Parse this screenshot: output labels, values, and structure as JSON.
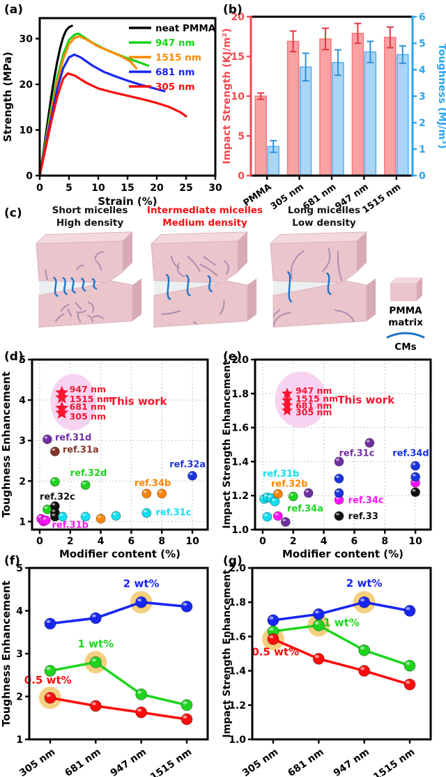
{
  "diagram": {
    "panel_label": "(c)",
    "blocks": [
      {
        "title1": "Short micelles",
        "title2": "High density",
        "title_color": "#111111",
        "micelles": {
          "count": 13,
          "len": 13,
          "bridges": 5,
          "bridge_len": 10
        }
      },
      {
        "title1": "Intermediate micelles",
        "title2": "Medium density",
        "title_color": "#f50f0f",
        "micelles": {
          "count": 9,
          "len": 22,
          "bridges": 3,
          "bridge_len": 18
        }
      },
      {
        "title1": "Long micelles",
        "title2": "Low density",
        "title_color": "#111111",
        "micelles": {
          "count": 6,
          "len": 36,
          "bridges": 2,
          "bridge_len": 26
        }
      }
    ],
    "legend": {
      "matrix_label1": "PMMA",
      "matrix_label2": "matrix",
      "cm_label": "CMs",
      "matrix_front": "#eac5cc",
      "matrix_top": "#f3d9dd",
      "matrix_side": "#d7aab5",
      "micelle_color": "#ab8fae",
      "cm_color": "#1b74c4"
    }
  },
  "chart_data": [
    {
      "id": "a",
      "type": "line",
      "panel_label": "(a)",
      "xlabel": "Strain (%)",
      "ylabel": "Strength (MPa)",
      "xlim": [
        0,
        30
      ],
      "ylim": [
        0,
        34.5
      ],
      "xticks": [
        "0",
        "5",
        "10",
        "15",
        "20",
        "25",
        "30"
      ],
      "yticks": [
        "0",
        "10",
        "20",
        "30"
      ],
      "legend_position": "top-right",
      "series": [
        {
          "name": "neat PMMA",
          "color": "#000000",
          "x": [
            0,
            0.5,
            1,
            1.5,
            2,
            2.5,
            3,
            3.5,
            4,
            4.5,
            5,
            5.5
          ],
          "y": [
            0,
            4,
            8.5,
            13,
            17.5,
            21.5,
            25,
            28,
            30.3,
            31.8,
            32.5,
            32.8
          ]
        },
        {
          "name": "947 nm",
          "color": "#14d414",
          "x": [
            0,
            1,
            2,
            3,
            4,
            5,
            6,
            6.6,
            7.5,
            9,
            11,
            13,
            15,
            17,
            18.5
          ],
          "y": [
            0,
            7.5,
            15,
            21.5,
            26.5,
            29.7,
            30.9,
            31.1,
            30.4,
            29.1,
            27.8,
            26.7,
            25.7,
            24.8,
            24.1
          ]
        },
        {
          "name": "1515 nm",
          "color": "#ff8a00",
          "x": [
            0,
            1,
            2,
            3,
            4,
            5,
            6,
            6.8,
            8,
            10,
            12,
            14,
            15.5,
            16.5
          ],
          "y": [
            0,
            7,
            14,
            20.5,
            25.5,
            28.8,
            30.2,
            30.5,
            29.8,
            28.3,
            27.2,
            26.1,
            25,
            23.5
          ]
        },
        {
          "name": "681 nm",
          "color": "#1726f2",
          "x": [
            0,
            1,
            2,
            3,
            4,
            5,
            5.9,
            7,
            9,
            11,
            13,
            15,
            17,
            19,
            21.3
          ],
          "y": [
            0,
            6.5,
            13,
            19,
            23.5,
            25.9,
            26.5,
            25.9,
            24.1,
            22.7,
            21.7,
            20.8,
            20,
            19.3,
            18.5
          ]
        },
        {
          "name": "305 nm",
          "color": "#fb0d0d",
          "x": [
            0,
            1,
            2,
            3,
            4,
            4.8,
            6,
            8,
            10,
            12,
            14,
            16,
            18,
            20,
            22,
            24,
            25
          ],
          "y": [
            0,
            6,
            12,
            17.3,
            21.2,
            22.4,
            21.9,
            20.3,
            19.1,
            18.4,
            17.8,
            17.2,
            16.6,
            15.9,
            15.1,
            13.9,
            13
          ]
        }
      ]
    },
    {
      "id": "b",
      "type": "bar",
      "panel_label": "(b)",
      "categories": [
        "PMMA",
        "305 nm",
        "681 nm",
        "947 nm",
        "1515 nm"
      ],
      "left": {
        "label": "Impact Strength (KJ/m²)",
        "lim": [
          0,
          20
        ],
        "ticks": [
          "0",
          "5",
          "10",
          "15",
          "20"
        ],
        "color": "#f5474e"
      },
      "right": {
        "label": "Toughness (MJ/m³)",
        "lim": [
          0,
          6
        ],
        "ticks": [
          "0",
          "1",
          "2",
          "3",
          "4",
          "5",
          "6"
        ],
        "color": "#2ba4ef"
      },
      "series": [
        {
          "name": "Impact Strength",
          "axis": "left",
          "fill": "#f9a2a4",
          "edge": "#f87478",
          "err_color": "#e8353f",
          "values": [
            10.0,
            16.9,
            17.2,
            17.9,
            17.4
          ],
          "errors": [
            0.4,
            1.3,
            1.35,
            1.25,
            1.3
          ]
        },
        {
          "name": "Toughness",
          "axis": "right",
          "fill": "#a9d6f5",
          "edge": "#53aeee",
          "err_color": "#2f8fd9",
          "values": [
            1.1,
            4.1,
            4.27,
            4.67,
            4.57
          ],
          "errors": [
            0.22,
            0.52,
            0.48,
            0.4,
            0.33
          ]
        }
      ]
    },
    {
      "id": "d",
      "type": "scatter",
      "panel_label": "(d)",
      "xlabel": "Modifier content (%)",
      "ylabel": "Toughness Enhancement",
      "xlim": [
        -0.5,
        11
      ],
      "ylim": [
        0.8,
        5
      ],
      "xticks": [
        "0",
        "2",
        "4",
        "6",
        "8",
        "10"
      ],
      "yticks": [
        "1",
        "2",
        "3",
        "4",
        "5"
      ],
      "grid": true,
      "groups": [
        {
          "name": "ref.31d",
          "color": "#7030a0",
          "points": [
            [
              0.5,
              3.03
            ]
          ],
          "label_at": [
            1.0,
            3.08
          ]
        },
        {
          "name": "ref.31a",
          "color": "#83352a",
          "points": [
            [
              1,
              2.73
            ]
          ],
          "label_at": [
            1.5,
            2.78
          ]
        },
        {
          "name": "ref.32d",
          "color": "#1fd41f",
          "points": [
            [
              0.5,
              1.3
            ],
            [
              1,
              1.98
            ],
            [
              3,
              1.9
            ]
          ],
          "label_at": [
            2.0,
            2.2
          ]
        },
        {
          "name": "ref.32c",
          "color": "#111111",
          "points": [
            [
              1,
              1.38
            ],
            [
              1,
              1.22
            ],
            [
              1,
              1.12
            ]
          ],
          "label_at": [
            0.0,
            1.62
          ]
        },
        {
          "name": "ref.31b",
          "color": "#fb14fb",
          "points": [
            [
              0.1,
              1.07
            ],
            [
              0.25,
              1.0
            ],
            [
              0.4,
              1.03
            ]
          ],
          "label_at": [
            0.8,
            0.92
          ]
        },
        {
          "name": "ref.34b",
          "color": "#ff8500",
          "points": [
            [
              4,
              1.07
            ],
            [
              7,
              1.69
            ],
            [
              8,
              1.69
            ]
          ],
          "label_at": [
            6.2,
            1.95
          ]
        },
        {
          "name": "ref.31c",
          "color": "#12dff0",
          "points": [
            [
              1.5,
              1.12
            ],
            [
              3,
              1.12
            ],
            [
              5,
              1.14
            ],
            [
              7,
              1.21
            ]
          ],
          "label_at": [
            7.6,
            1.23
          ]
        },
        {
          "name": "ref.32a",
          "color": "#1a35dd",
          "points": [
            [
              10,
              2.13
            ]
          ],
          "label_at": [
            8.5,
            2.42
          ]
        }
      ],
      "highlight": {
        "color": "#fb1430",
        "ellipse": {
          "cx": 2.2,
          "cy": 3.95,
          "rx": 1.5,
          "ry": 0.7,
          "fill": "#f8d3f1"
        },
        "stars": [
          {
            "x": 1.45,
            "y": 4.18
          },
          {
            "x": 1.45,
            "y": 4.06
          },
          {
            "x": 1.45,
            "y": 3.8
          },
          {
            "x": 1.45,
            "y": 3.68
          }
        ],
        "star_labels": [
          {
            "text": "947 nm",
            "x": 1.95,
            "y": 4.26
          },
          {
            "text": "1515 nm",
            "x": 1.95,
            "y": 4.02
          },
          {
            "text": "681 nm",
            "x": 1.95,
            "y": 3.83
          },
          {
            "text": "305 nm",
            "x": 1.95,
            "y": 3.59
          }
        ],
        "title": {
          "text": "This work",
          "x": 4.6,
          "y": 3.97
        }
      }
    },
    {
      "id": "e",
      "type": "scatter",
      "panel_label": "(e)",
      "xlabel": "Modifier content (%)",
      "ylabel": "Impact Strength Enhancement",
      "xlim": [
        -0.5,
        11
      ],
      "ylim": [
        1.0,
        2.0
      ],
      "xticks": [
        "0",
        "2",
        "4",
        "6",
        "8",
        "10"
      ],
      "yticks": [
        "1.0",
        "1.2",
        "1.4",
        "1.6",
        "1.8",
        "2.0"
      ],
      "grid": true,
      "groups": [
        {
          "name": "ref.31b",
          "color": "#12dff0",
          "points": [
            [
              0.1,
              1.18
            ],
            [
              0.3,
              1.19
            ],
            [
              0.55,
              1.185
            ],
            [
              0.8,
              1.165
            ],
            [
              0.3,
              1.075
            ]
          ],
          "label_at": [
            0.0,
            1.33
          ]
        },
        {
          "name": "ref.32b",
          "color": "#ff8500",
          "points": [
            [
              1.0,
              1.21
            ]
          ],
          "label_at": [
            0.55,
            1.27
          ]
        },
        {
          "name": "ref.34a",
          "color": "#1fd41f",
          "points": [
            [
              2,
              1.195
            ]
          ],
          "label_at": [
            1.6,
            1.125
          ]
        },
        {
          "name": "ref.31c",
          "color": "#7030a0",
          "points": [
            [
              1.5,
              1.045
            ],
            [
              3,
              1.215
            ],
            [
              5,
              1.4
            ],
            [
              7,
              1.51
            ]
          ],
          "label_at": [
            5.0,
            1.45
          ]
        },
        {
          "name": "ref.34c",
          "color": "#fb14fb",
          "points": [
            [
              1,
              1.08
            ],
            [
              5,
              1.175
            ],
            [
              10,
              1.275
            ]
          ],
          "label_at": [
            5.6,
            1.175
          ]
        },
        {
          "name": "ref.33",
          "color": "#111111",
          "points": [
            [
              5,
              1.08
            ],
            [
              10,
              1.22
            ]
          ],
          "label_at": [
            5.6,
            1.08
          ]
        },
        {
          "name": "ref.34d",
          "color": "#1a35dd",
          "points": [
            [
              5,
              1.215
            ],
            [
              5,
              1.3
            ],
            [
              10,
              1.31
            ],
            [
              10,
              1.375
            ]
          ],
          "label_at": [
            8.5,
            1.45
          ]
        }
      ],
      "highlight": {
        "color": "#fb1430",
        "ellipse": {
          "cx": 2.5,
          "cy": 1.765,
          "rx": 1.7,
          "ry": 0.165,
          "fill": "#f8d3f1"
        },
        "stars": [
          {
            "x": 1.6,
            "y": 1.8
          },
          {
            "x": 1.6,
            "y": 1.76
          },
          {
            "x": 1.6,
            "y": 1.73
          },
          {
            "x": 1.6,
            "y": 1.7
          }
        ],
        "star_labels": [
          {
            "text": "947 nm",
            "x": 2.15,
            "y": 1.815
          },
          {
            "text": "1515 nm",
            "x": 2.15,
            "y": 1.768
          },
          {
            "text": "681 nm",
            "x": 2.15,
            "y": 1.728
          },
          {
            "text": "305 nm",
            "x": 2.15,
            "y": 1.688
          }
        ],
        "title": {
          "text": "This work",
          "x": 4.9,
          "y": 1.762
        }
      }
    },
    {
      "id": "f",
      "type": "cat-line",
      "panel_label": "(f)",
      "categories": [
        "305 nm",
        "681 nm",
        "947 nm",
        "1515 nm"
      ],
      "ylabel": "Toughness Enhancement",
      "ylim": [
        1,
        5
      ],
      "yticks": [
        "1",
        "2",
        "3",
        "4",
        "5"
      ],
      "highlight_color": "#f2c462",
      "series": [
        {
          "name": "2 wt%",
          "color": "#1726f2",
          "values": [
            3.7,
            3.83,
            4.2,
            4.1
          ],
          "highlight_index": 2,
          "label_at": [
            2,
            4.55
          ]
        },
        {
          "name": "1 wt%",
          "color": "#1fd41f",
          "values": [
            2.6,
            2.8,
            2.05,
            1.8
          ],
          "highlight_index": 1,
          "label_at": [
            1,
            3.15
          ]
        },
        {
          "name": "0.5 wt%",
          "color": "#fb0d0d",
          "values": [
            1.97,
            1.78,
            1.63,
            1.47
          ],
          "highlight_index": 0,
          "label_at": [
            -0.05,
            2.3
          ]
        }
      ]
    },
    {
      "id": "g",
      "type": "cat-line",
      "panel_label": "(g)",
      "categories": [
        "305 nm",
        "681 nm",
        "947 nm",
        "1515 nm"
      ],
      "ylabel": "Impact Strength Enhancement",
      "ylim": [
        1.0,
        2.0
      ],
      "yticks": [
        "1.0",
        "1.2",
        "1.4",
        "1.6",
        "1.8",
        "2.0"
      ],
      "highlight_color": "#f2c462",
      "series": [
        {
          "name": "2 wt%",
          "color": "#1726f2",
          "values": [
            1.695,
            1.73,
            1.8,
            1.75
          ],
          "highlight_index": 2,
          "label_at": [
            2,
            1.89
          ]
        },
        {
          "name": "1 wt%",
          "color": "#1fd41f",
          "values": [
            1.63,
            1.665,
            1.52,
            1.43
          ],
          "highlight_index": 1,
          "label_at": [
            1.5,
            1.66
          ]
        },
        {
          "name": "0.5 wt%",
          "color": "#fb0d0d",
          "values": [
            1.585,
            1.47,
            1.4,
            1.32
          ],
          "highlight_index": 0,
          "label_at": [
            0.05,
            1.49
          ]
        }
      ]
    }
  ]
}
